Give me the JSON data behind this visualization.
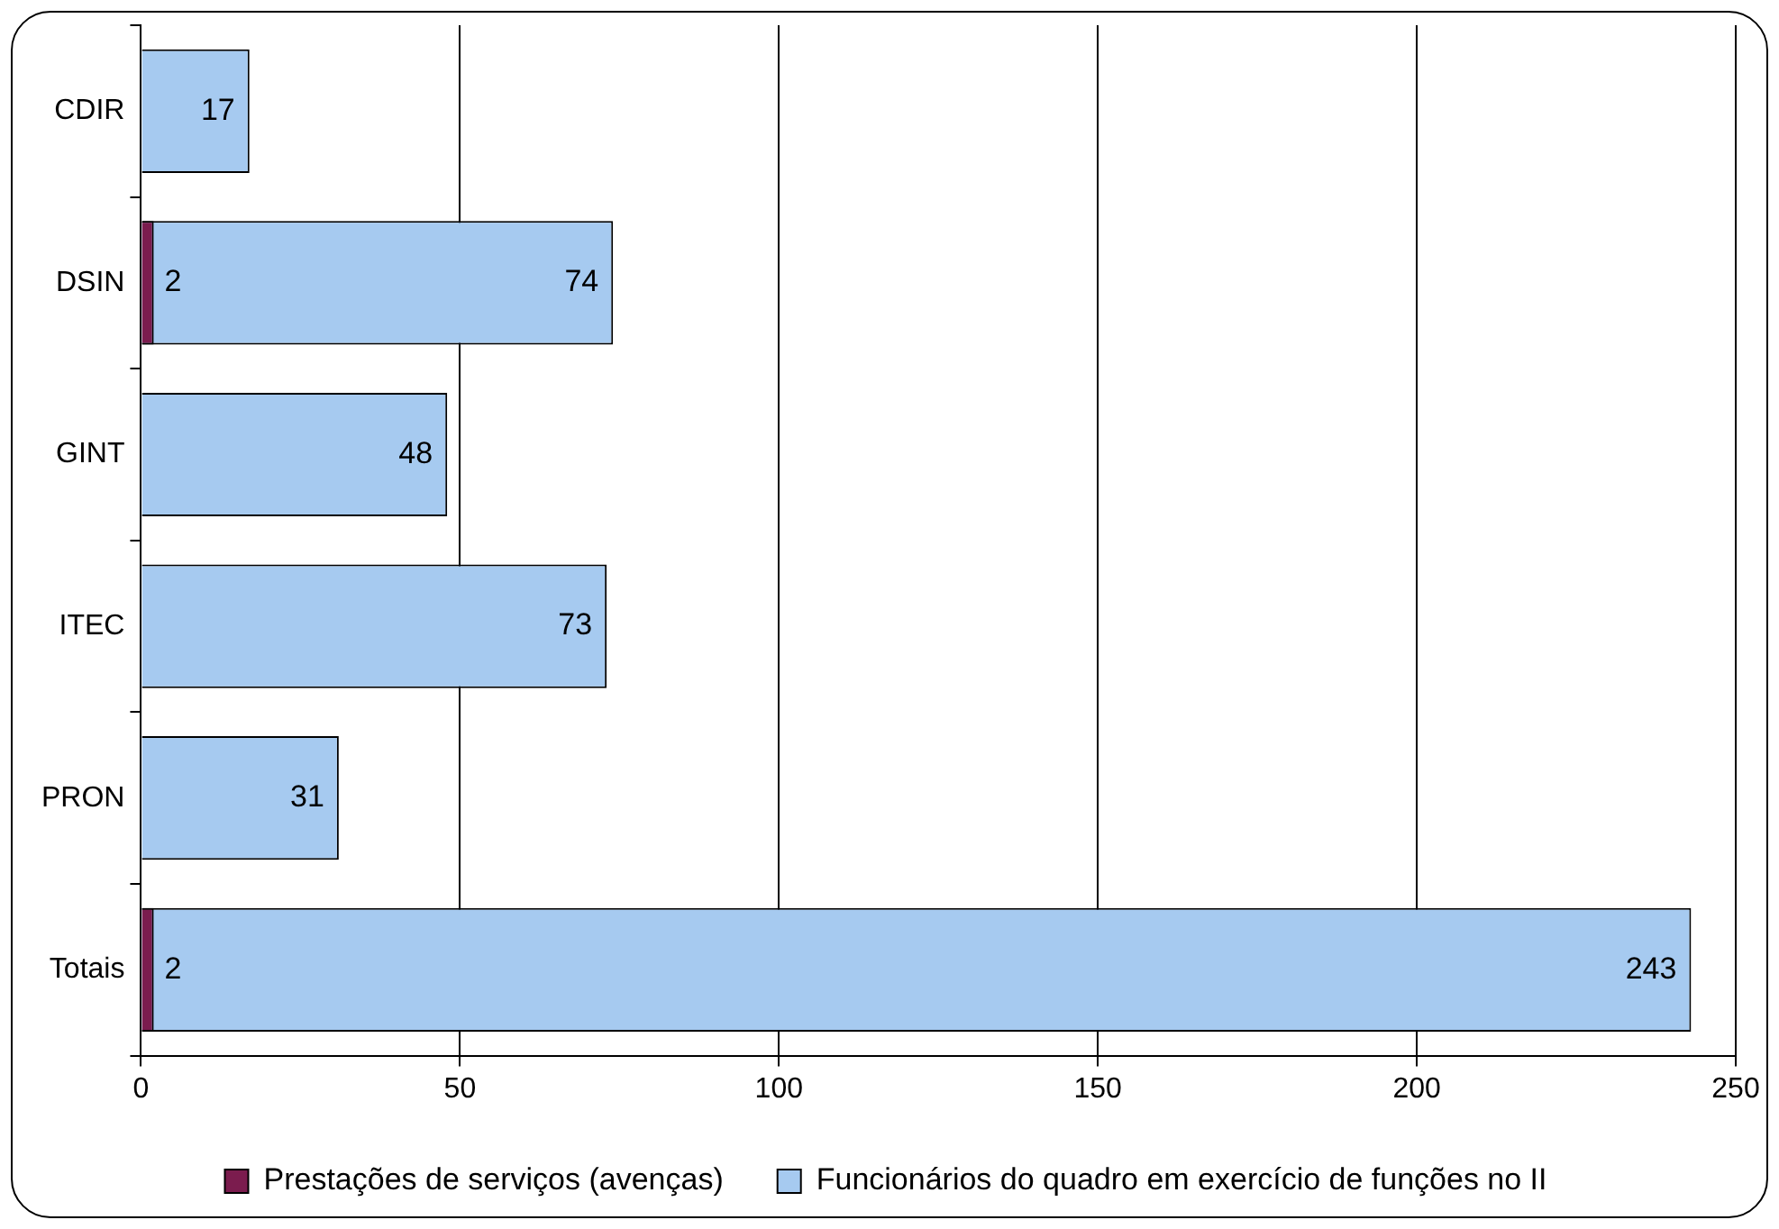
{
  "chart_data": {
    "type": "bar",
    "orientation": "horizontal",
    "categories": [
      "CDIR",
      "DSIN",
      "GINT",
      "ITEC",
      "PRON",
      "Totais"
    ],
    "series": [
      {
        "name": "Funcionários do quadro em exercício de funções no II",
        "color": "#a6caf0",
        "values": [
          17,
          74,
          48,
          73,
          31,
          243
        ]
      },
      {
        "name": "Prestações de serviços (avenças)",
        "color": "#7b1c4e",
        "values": [
          null,
          2,
          null,
          null,
          null,
          2
        ]
      }
    ],
    "xlim": [
      0,
      250
    ],
    "xticks": [
      0,
      50,
      100,
      150,
      200,
      250
    ],
    "grid": "x",
    "legend": "bottom",
    "data_labels": true
  }
}
